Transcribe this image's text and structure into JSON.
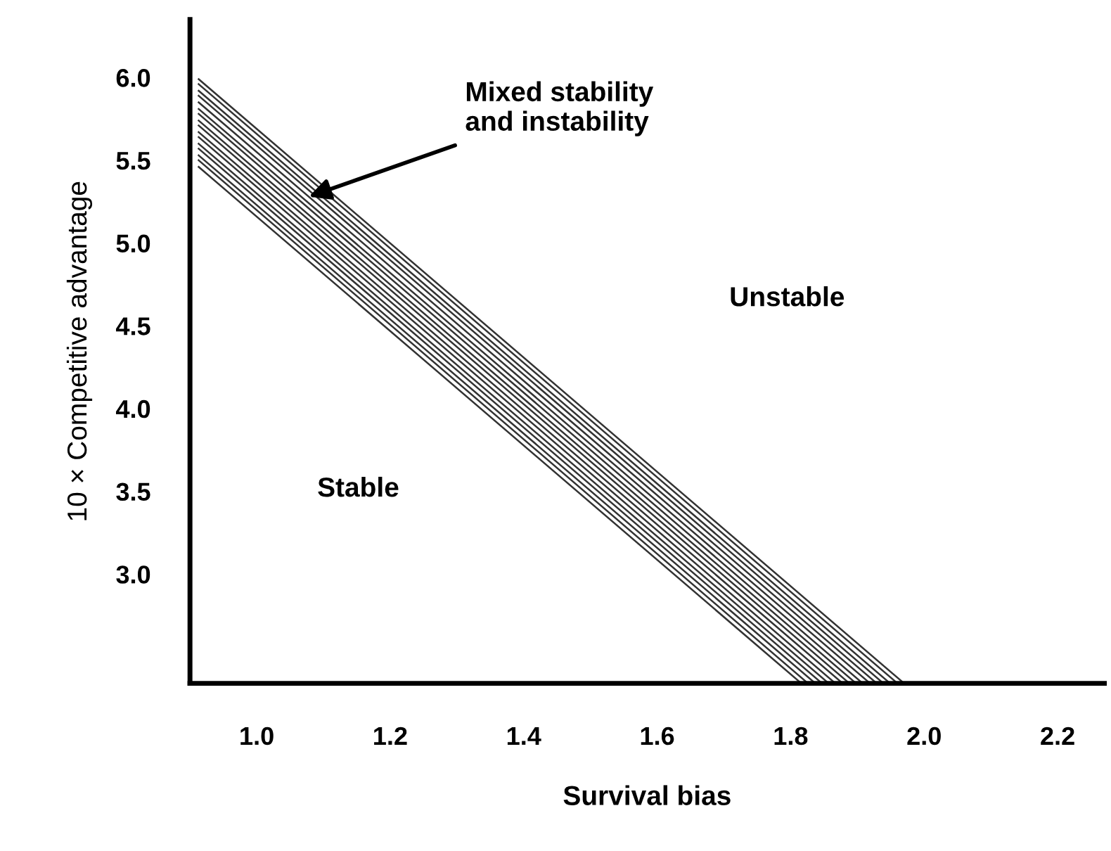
{
  "chart_data": {
    "type": "line",
    "xlabel": "Survival bias",
    "ylabel": "10 × Competitive advantage",
    "xlim": [
      0.9,
      2.27
    ],
    "ylim": [
      2.34,
      6.35
    ],
    "xticks": [
      {
        "value": 1.0,
        "label": "1.0"
      },
      1.2,
      1.4,
      1.6,
      1.8,
      {
        "value": 2.0,
        "label": "2.0"
      },
      2.2
    ],
    "yticks": [
      {
        "value": 3.0,
        "label": "3.0"
      },
      3.5,
      {
        "value": 4.0,
        "label": "4.0"
      },
      4.5,
      {
        "value": 5.0,
        "label": "5.0"
      },
      5.5,
      {
        "value": 6.0,
        "label": "6.0"
      }
    ],
    "grid": false,
    "legend": false,
    "marker": "none",
    "line_style": "solid",
    "series": [
      {
        "color": "#333333",
        "x": [
          0.913,
          1.97
        ],
        "values": [
          5.99,
          2.34
        ]
      },
      {
        "color": "#333333",
        "x": [
          0.913,
          1.96
        ],
        "values": [
          5.96,
          2.34
        ]
      },
      {
        "color": "#333333",
        "x": [
          0.913,
          1.949
        ],
        "values": [
          5.92,
          2.34
        ]
      },
      {
        "color": "#333333",
        "x": [
          0.913,
          1.939
        ],
        "values": [
          5.89,
          2.34
        ]
      },
      {
        "color": "#333333",
        "x": [
          0.913,
          1.929
        ],
        "values": [
          5.85,
          2.34
        ]
      },
      {
        "color": "#333333",
        "x": [
          0.913,
          1.919
        ],
        "values": [
          5.81,
          2.34
        ]
      },
      {
        "color": "#333333",
        "x": [
          0.913,
          1.908
        ],
        "values": [
          5.78,
          2.34
        ]
      },
      {
        "color": "#333333",
        "x": [
          0.913,
          1.898
        ],
        "values": [
          5.74,
          2.34
        ]
      },
      {
        "color": "#333333",
        "x": [
          0.913,
          1.888
        ],
        "values": [
          5.71,
          2.34
        ]
      },
      {
        "color": "#333333",
        "x": [
          0.913,
          1.878
        ],
        "values": [
          5.67,
          2.34
        ]
      },
      {
        "color": "#333333",
        "x": [
          0.913,
          1.867
        ],
        "values": [
          5.64,
          2.34
        ]
      },
      {
        "color": "#333333",
        "x": [
          0.913,
          1.857
        ],
        "values": [
          5.6,
          2.34
        ]
      },
      {
        "color": "#333333",
        "x": [
          0.913,
          1.847
        ],
        "values": [
          5.57,
          2.34
        ]
      },
      {
        "color": "#333333",
        "x": [
          0.913,
          1.837
        ],
        "values": [
          5.53,
          2.34
        ]
      },
      {
        "color": "#333333",
        "x": [
          0.913,
          1.826
        ],
        "values": [
          5.5,
          2.34
        ]
      },
      {
        "color": "#333333",
        "x": [
          0.913,
          1.816
        ],
        "values": [
          5.46,
          2.34
        ]
      }
    ],
    "annotations": [
      {
        "text": "Mixed stability\nand instability",
        "x": 1.078,
        "y": 5.28
      },
      "Unstable",
      "Stable"
    ]
  }
}
